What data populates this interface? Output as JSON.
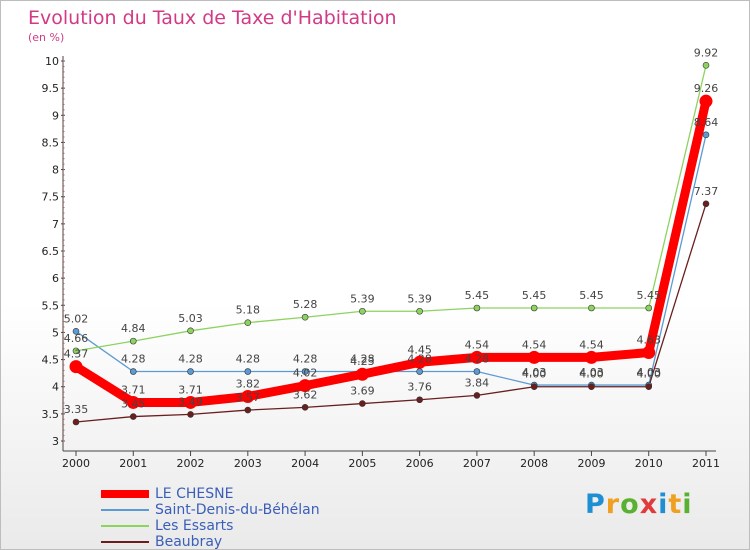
{
  "chart_data": {
    "type": "line",
    "title": "Evolution du Taux de Taxe d'Habitation",
    "subtitle": "(en %)",
    "x": [
      "2000",
      "2001",
      "2002",
      "2003",
      "2004",
      "2005",
      "2006",
      "2007",
      "2008",
      "2009",
      "2010",
      "2011"
    ],
    "y_ticks": [
      "3",
      "3.5",
      "4",
      "4.5",
      "5",
      "5.5",
      "6",
      "6.5",
      "7",
      "7.5",
      "8",
      "8.5",
      "9",
      "9.5",
      "10"
    ],
    "ylim": [
      3,
      10
    ],
    "grid": false,
    "legend_position": "bottom-left",
    "series": [
      {
        "name": "LE CHESNE",
        "color": "#ff0000",
        "values": [
          4.37,
          3.71,
          3.71,
          3.82,
          4.02,
          4.23,
          4.45,
          4.54,
          4.54,
          4.54,
          4.63,
          9.26
        ],
        "labels": [
          "4.37",
          "3.71",
          "3.71",
          "3.82",
          "4.02",
          "4.23",
          "4.45",
          "4.54",
          "4.54",
          "4.54",
          "4.63",
          "9.26"
        ]
      },
      {
        "name": "Saint-Denis-du-Béhélan",
        "color": "#5b9bd5",
        "values": [
          5.02,
          4.28,
          4.28,
          4.28,
          4.28,
          4.28,
          4.28,
          4.28,
          4.03,
          4.03,
          4.03,
          8.64
        ],
        "labels": [
          "5.02",
          "4.28",
          "4.28",
          "4.28",
          "4.28",
          "4.28",
          "4.28",
          "4.28",
          "4.03",
          "4.03",
          "4.03",
          "8.64"
        ]
      },
      {
        "name": "Les Essarts",
        "color": "#8dd35f",
        "values": [
          4.66,
          4.84,
          5.03,
          5.18,
          5.28,
          5.39,
          5.39,
          5.45,
          5.45,
          5.45,
          5.45,
          9.92
        ],
        "labels": [
          "4.66",
          "4.84",
          "5.03",
          "5.18",
          "5.28",
          "5.39",
          "5.39",
          "5.45",
          "5.45",
          "5.45",
          "5.45",
          "9.92"
        ]
      },
      {
        "name": "Beaubray",
        "color": "#6b1e1e",
        "values": [
          3.35,
          3.45,
          3.49,
          3.57,
          3.62,
          3.69,
          3.76,
          3.84,
          4.0,
          4.0,
          4.0,
          7.37
        ],
        "labels": [
          "3.35",
          "3.45",
          "3.49",
          "3.57",
          "3.62",
          "3.69",
          "3.76",
          "3.84",
          "4.00",
          "4.00",
          "4.00",
          "7.37"
        ]
      }
    ]
  },
  "brand": {
    "letters": [
      "P",
      "r",
      "o",
      "x",
      "i",
      "t",
      "i"
    ],
    "colors": [
      "#1f8fd4",
      "#f0a020",
      "#5ab030",
      "#e03a3a",
      "#1f8fd4",
      "#f0a020",
      "#5ab030"
    ]
  }
}
